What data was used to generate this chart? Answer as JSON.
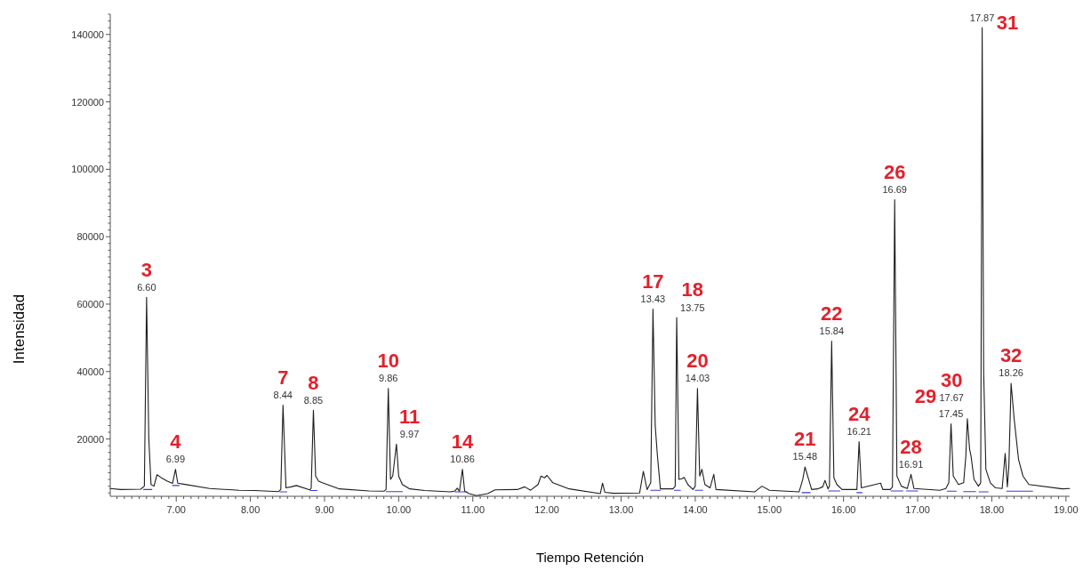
{
  "chart_data": {
    "type": "line",
    "xlabel": "Tiempo Retención",
    "ylabel": "Intensidad",
    "xlim": [
      6.11,
      19.05
    ],
    "ylim": [
      3000,
      146000
    ],
    "xticks": [
      {
        "value": 6.2,
        "label": null
      },
      {
        "value": 6.3,
        "label": null
      },
      {
        "value": 6.4,
        "label": null
      },
      {
        "value": 6.5,
        "label": null
      },
      {
        "value": 6.6,
        "label": null
      },
      {
        "value": 6.7,
        "label": null
      },
      {
        "value": 6.8,
        "label": null
      },
      {
        "value": 6.9,
        "label": null
      },
      {
        "value": 7,
        "label": "7.00"
      },
      {
        "value": 7.1,
        "label": null
      },
      {
        "value": 7.2,
        "label": null
      },
      {
        "value": 7.3,
        "label": null
      },
      {
        "value": 7.4,
        "label": null
      },
      {
        "value": 7.5,
        "label": null
      },
      {
        "value": 7.6,
        "label": null
      },
      {
        "value": 7.7,
        "label": null
      },
      {
        "value": 7.8,
        "label": null
      },
      {
        "value": 7.9,
        "label": null
      },
      {
        "value": 8,
        "label": "8.00"
      },
      {
        "value": 8.1,
        "label": null
      },
      {
        "value": 8.2,
        "label": null
      },
      {
        "value": 8.3,
        "label": null
      },
      {
        "value": 8.4,
        "label": null
      },
      {
        "value": 8.5,
        "label": null
      },
      {
        "value": 8.6,
        "label": null
      },
      {
        "value": 8.7,
        "label": null
      },
      {
        "value": 8.8,
        "label": null
      },
      {
        "value": 8.9,
        "label": null
      },
      {
        "value": 9,
        "label": "9.00"
      },
      {
        "value": 9.1,
        "label": null
      },
      {
        "value": 9.2,
        "label": null
      },
      {
        "value": 9.3,
        "label": null
      },
      {
        "value": 9.4,
        "label": null
      },
      {
        "value": 9.5,
        "label": null
      },
      {
        "value": 9.6,
        "label": null
      },
      {
        "value": 9.7,
        "label": null
      },
      {
        "value": 9.8,
        "label": null
      },
      {
        "value": 9.9,
        "label": null
      },
      {
        "value": 10,
        "label": "10.00"
      },
      {
        "value": 10.1,
        "label": null
      },
      {
        "value": 10.2,
        "label": null
      },
      {
        "value": 10.3,
        "label": null
      },
      {
        "value": 10.4,
        "label": null
      },
      {
        "value": 10.5,
        "label": null
      },
      {
        "value": 10.6,
        "label": null
      },
      {
        "value": 10.7,
        "label": null
      },
      {
        "value": 10.8,
        "label": null
      },
      {
        "value": 10.9,
        "label": null
      },
      {
        "value": 11,
        "label": "11.00"
      },
      {
        "value": 11.1,
        "label": null
      },
      {
        "value": 11.2,
        "label": null
      },
      {
        "value": 11.3,
        "label": null
      },
      {
        "value": 11.4,
        "label": null
      },
      {
        "value": 11.5,
        "label": null
      },
      {
        "value": 11.6,
        "label": null
      },
      {
        "value": 11.7,
        "label": null
      },
      {
        "value": 11.8,
        "label": null
      },
      {
        "value": 11.9,
        "label": null
      },
      {
        "value": 12,
        "label": "12.00"
      },
      {
        "value": 12.1,
        "label": null
      },
      {
        "value": 12.2,
        "label": null
      },
      {
        "value": 12.3,
        "label": null
      },
      {
        "value": 12.4,
        "label": null
      },
      {
        "value": 12.5,
        "label": null
      },
      {
        "value": 12.6,
        "label": null
      },
      {
        "value": 12.7,
        "label": null
      },
      {
        "value": 12.8,
        "label": null
      },
      {
        "value": 12.9,
        "label": null
      },
      {
        "value": 13,
        "label": "13.00"
      },
      {
        "value": 13.1,
        "label": null
      },
      {
        "value": 13.2,
        "label": null
      },
      {
        "value": 13.3,
        "label": null
      },
      {
        "value": 13.4,
        "label": null
      },
      {
        "value": 13.5,
        "label": null
      },
      {
        "value": 13.6,
        "label": null
      },
      {
        "value": 13.7,
        "label": null
      },
      {
        "value": 13.8,
        "label": null
      },
      {
        "value": 13.9,
        "label": null
      },
      {
        "value": 14,
        "label": "14.00"
      },
      {
        "value": 14.1,
        "label": null
      },
      {
        "value": 14.2,
        "label": null
      },
      {
        "value": 14.3,
        "label": null
      },
      {
        "value": 14.4,
        "label": null
      },
      {
        "value": 14.5,
        "label": null
      },
      {
        "value": 14.6,
        "label": null
      },
      {
        "value": 14.7,
        "label": null
      },
      {
        "value": 14.8,
        "label": null
      },
      {
        "value": 14.9,
        "label": null
      },
      {
        "value": 15,
        "label": "15.00"
      },
      {
        "value": 15.1,
        "label": null
      },
      {
        "value": 15.2,
        "label": null
      },
      {
        "value": 15.3,
        "label": null
      },
      {
        "value": 15.4,
        "label": null
      },
      {
        "value": 15.5,
        "label": null
      },
      {
        "value": 15.6,
        "label": null
      },
      {
        "value": 15.7,
        "label": null
      },
      {
        "value": 15.8,
        "label": null
      },
      {
        "value": 15.9,
        "label": null
      },
      {
        "value": 16,
        "label": "16.00"
      },
      {
        "value": 16.1,
        "label": null
      },
      {
        "value": 16.2,
        "label": null
      },
      {
        "value": 16.3,
        "label": null
      },
      {
        "value": 16.4,
        "label": null
      },
      {
        "value": 16.5,
        "label": null
      },
      {
        "value": 16.6,
        "label": null
      },
      {
        "value": 16.7,
        "label": null
      },
      {
        "value": 16.8,
        "label": null
      },
      {
        "value": 16.9,
        "label": null
      },
      {
        "value": 17,
        "label": "17.00"
      },
      {
        "value": 17.1,
        "label": null
      },
      {
        "value": 17.2,
        "label": null
      },
      {
        "value": 17.3,
        "label": null
      },
      {
        "value": 17.4,
        "label": null
      },
      {
        "value": 17.5,
        "label": null
      },
      {
        "value": 17.6,
        "label": null
      },
      {
        "value": 17.7,
        "label": null
      },
      {
        "value": 17.8,
        "label": null
      },
      {
        "value": 17.9,
        "label": null
      },
      {
        "value": 18,
        "label": "18.00"
      },
      {
        "value": 18.1,
        "label": null
      },
      {
        "value": 18.2,
        "label": null
      },
      {
        "value": 18.3,
        "label": null
      },
      {
        "value": 18.4,
        "label": null
      },
      {
        "value": 18.5,
        "label": null
      },
      {
        "value": 18.6,
        "label": null
      },
      {
        "value": 18.7,
        "label": null
      },
      {
        "value": 18.8,
        "label": null
      },
      {
        "value": 18.9,
        "label": null
      },
      {
        "value": 19,
        "label": "19.00"
      }
    ],
    "yticks": [
      {
        "value": 4000,
        "label": null
      },
      {
        "value": 6000,
        "label": null
      },
      {
        "value": 8000,
        "label": null
      },
      {
        "value": 10000,
        "label": null
      },
      {
        "value": 12000,
        "label": null
      },
      {
        "value": 14000,
        "label": null
      },
      {
        "value": 16000,
        "label": null
      },
      {
        "value": 18000,
        "label": null
      },
      20000,
      {
        "value": 22000,
        "label": null
      },
      {
        "value": 24000,
        "label": null
      },
      {
        "value": 26000,
        "label": null
      },
      {
        "value": 28000,
        "label": null
      },
      {
        "value": 30000,
        "label": null
      },
      {
        "value": 32000,
        "label": null
      },
      {
        "value": 34000,
        "label": null
      },
      {
        "value": 36000,
        "label": null
      },
      {
        "value": 38000,
        "label": null
      },
      40000,
      {
        "value": 42000,
        "label": null
      },
      {
        "value": 44000,
        "label": null
      },
      {
        "value": 46000,
        "label": null
      },
      {
        "value": 48000,
        "label": null
      },
      {
        "value": 50000,
        "label": null
      },
      {
        "value": 52000,
        "label": null
      },
      {
        "value": 54000,
        "label": null
      },
      {
        "value": 56000,
        "label": null
      },
      {
        "value": 58000,
        "label": null
      },
      60000,
      {
        "value": 62000,
        "label": null
      },
      {
        "value": 64000,
        "label": null
      },
      {
        "value": 66000,
        "label": null
      },
      {
        "value": 68000,
        "label": null
      },
      {
        "value": 70000,
        "label": null
      },
      {
        "value": 72000,
        "label": null
      },
      {
        "value": 74000,
        "label": null
      },
      {
        "value": 76000,
        "label": null
      },
      {
        "value": 78000,
        "label": null
      },
      80000,
      {
        "value": 82000,
        "label": null
      },
      {
        "value": 84000,
        "label": null
      },
      {
        "value": 86000,
        "label": null
      },
      {
        "value": 88000,
        "label": null
      },
      {
        "value": 90000,
        "label": null
      },
      {
        "value": 92000,
        "label": null
      },
      {
        "value": 94000,
        "label": null
      },
      {
        "value": 96000,
        "label": null
      },
      {
        "value": 98000,
        "label": null
      },
      100000,
      {
        "value": 102000,
        "label": null
      },
      {
        "value": 104000,
        "label": null
      },
      {
        "value": 106000,
        "label": null
      },
      {
        "value": 108000,
        "label": null
      },
      {
        "value": 110000,
        "label": null
      },
      {
        "value": 112000,
        "label": null
      },
      {
        "value": 114000,
        "label": null
      },
      {
        "value": 116000,
        "label": null
      },
      {
        "value": 118000,
        "label": null
      },
      120000,
      {
        "value": 122000,
        "label": null
      },
      {
        "value": 124000,
        "label": null
      },
      {
        "value": 126000,
        "label": null
      },
      {
        "value": 128000,
        "label": null
      },
      {
        "value": 130000,
        "label": null
      },
      {
        "value": 132000,
        "label": null
      },
      {
        "value": 134000,
        "label": null
      },
      {
        "value": 136000,
        "label": null
      },
      {
        "value": 138000,
        "label": null
      },
      140000,
      {
        "value": 142000,
        "label": null
      },
      {
        "value": 144000,
        "label": null
      },
      {
        "value": 146000,
        "label": null
      }
    ],
    "series": [
      {
        "color": "#1e1e1e",
        "x": [
          6.11,
          6.25,
          6.52,
          6.57,
          6.6,
          6.63,
          6.66,
          6.7,
          6.74,
          6.8,
          6.88,
          6.95,
          6.99,
          7.02,
          7.1,
          7.45,
          7.85,
          8.05,
          8.38,
          8.41,
          8.44,
          8.48,
          8.55,
          8.62,
          8.8,
          8.82,
          8.85,
          8.88,
          8.92,
          8.97,
          9.2,
          9.6,
          9.8,
          9.83,
          9.86,
          9.89,
          9.92,
          9.97,
          10.0,
          10.05,
          10.15,
          10.35,
          10.7,
          10.76,
          10.79,
          10.82,
          10.86,
          10.89,
          10.95,
          11.05,
          11.2,
          11.3,
          11.6,
          11.7,
          11.78,
          11.88,
          11.92,
          11.97,
          12.0,
          12.08,
          12.3,
          12.72,
          12.75,
          12.78,
          12.9,
          13.25,
          13.3,
          13.35,
          13.4,
          13.43,
          13.46,
          13.49,
          13.53,
          13.7,
          13.73,
          13.75,
          13.78,
          13.82,
          13.85,
          13.9,
          13.97,
          14.0,
          14.03,
          14.06,
          14.09,
          14.13,
          14.2,
          14.25,
          14.28,
          14.8,
          14.9,
          15.0,
          15.4,
          15.45,
          15.48,
          15.53,
          15.57,
          15.65,
          15.72,
          15.75,
          15.79,
          15.81,
          15.84,
          15.87,
          15.91,
          15.98,
          16.18,
          16.21,
          16.24,
          16.5,
          16.53,
          16.63,
          16.66,
          16.69,
          16.72,
          16.78,
          16.86,
          16.91,
          16.95,
          17.3,
          17.38,
          17.42,
          17.45,
          17.48,
          17.55,
          17.62,
          17.65,
          17.67,
          17.7,
          17.72,
          17.76,
          17.82,
          17.85,
          17.87,
          17.89,
          17.92,
          17.98,
          18.05,
          18.14,
          18.18,
          18.21,
          18.23,
          18.26,
          18.3,
          18.36,
          18.42,
          18.5,
          18.95,
          19.05
        ],
        "values": [
          5300,
          5000,
          5100,
          6000,
          62000,
          20000,
          6500,
          6000,
          9400,
          8500,
          7500,
          6800,
          11000,
          6900,
          6600,
          5300,
          4800,
          4700,
          4400,
          5000,
          30000,
          5500,
          5800,
          6200,
          4900,
          5400,
          28500,
          9000,
          7500,
          7000,
          5200,
          4600,
          4500,
          5000,
          35000,
          8000,
          9000,
          18500,
          9000,
          6500,
          5200,
          4700,
          4300,
          4600,
          5400,
          4500,
          11000,
          4500,
          3800,
          3200,
          3800,
          4900,
          5000,
          5800,
          4800,
          6500,
          9000,
          8500,
          9200,
          7000,
          5200,
          3800,
          6900,
          4200,
          3900,
          4000,
          10400,
          5000,
          7000,
          58500,
          24000,
          15000,
          5200,
          5200,
          6000,
          56000,
          8000,
          8200,
          8600,
          6500,
          5000,
          6000,
          35000,
          9000,
          11000,
          6500,
          5500,
          9500,
          5000,
          4300,
          6000,
          4800,
          4300,
          8000,
          11700,
          8000,
          5000,
          5200,
          5800,
          7700,
          5200,
          6000,
          49000,
          8500,
          6500,
          5000,
          5000,
          19200,
          5500,
          6900,
          5000,
          5000,
          5800,
          91000,
          9000,
          6000,
          5300,
          9500,
          5300,
          4800,
          5300,
          7000,
          24500,
          9000,
          6500,
          7000,
          15000,
          26000,
          17000,
          14900,
          8000,
          6000,
          7000,
          142000,
          40000,
          11000,
          7000,
          5500,
          5300,
          15700,
          5800,
          12000,
          36500,
          26300,
          14000,
          9000,
          6500,
          5200,
          5300
        ]
      },
      {
        "color": "#3b3bd6",
        "x": [
          6.56,
          6.67
        ],
        "values": [
          5000,
          5000
        ]
      },
      {
        "color": "#3b3bd6",
        "x": [
          6.95,
          7.04
        ],
        "values": [
          6200,
          6200
        ]
      },
      {
        "color": "#3b3bd6",
        "x": [
          8.4,
          8.49
        ],
        "values": [
          4300,
          4300
        ]
      },
      {
        "color": "#3b3bd6",
        "x": [
          8.81,
          8.9
        ],
        "values": [
          4700,
          4700
        ]
      },
      {
        "color": "#3b3bd6",
        "x": [
          9.83,
          10.05
        ],
        "values": [
          4400,
          4400
        ]
      },
      {
        "color": "#3b3bd6",
        "x": [
          10.76,
          10.92
        ],
        "values": [
          4300,
          4300
        ]
      },
      {
        "color": "#3b3bd6",
        "x": [
          13.4,
          13.53
        ],
        "values": [
          4800,
          4800
        ]
      },
      {
        "color": "#3b3bd6",
        "x": [
          13.72,
          13.8
        ],
        "values": [
          4800,
          4800
        ]
      },
      {
        "color": "#3b3bd6",
        "x": [
          14.0,
          14.1
        ],
        "values": [
          4800,
          4800
        ]
      },
      {
        "color": "#3b3bd6",
        "x": [
          15.44,
          15.55
        ],
        "values": [
          4100,
          4100
        ]
      },
      {
        "color": "#3b3bd6",
        "x": [
          15.8,
          15.95
        ],
        "values": [
          4600,
          4600
        ]
      },
      {
        "color": "#3b3bd6",
        "x": [
          16.18,
          16.25
        ],
        "values": [
          4100,
          4100
        ]
      },
      {
        "color": "#3b3bd6",
        "x": [
          16.64,
          16.8
        ],
        "values": [
          4600,
          4600
        ]
      },
      {
        "color": "#3b3bd6",
        "x": [
          16.85,
          17.0
        ],
        "values": [
          4600,
          4600
        ]
      },
      {
        "color": "#3b3bd6",
        "x": [
          17.4,
          17.52
        ],
        "values": [
          4500,
          4500
        ]
      },
      {
        "color": "#3b3bd6",
        "x": [
          17.62,
          17.78
        ],
        "values": [
          4400,
          4400
        ]
      },
      {
        "color": "#3b3bd6",
        "x": [
          17.83,
          17.95
        ],
        "values": [
          4300,
          4300
        ]
      },
      {
        "color": "#3b3bd6",
        "x": [
          18.2,
          18.55
        ],
        "values": [
          4500,
          4500
        ]
      }
    ],
    "annotations": [
      {
        "text": "6.60",
        "x": 6.6,
        "y": 62000
      },
      {
        "text": "3",
        "x": 6.6,
        "y": 62000
      },
      {
        "text": "6.99",
        "x": 6.99,
        "y": 11000
      },
      {
        "text": "4",
        "x": 6.99,
        "y": 11000
      },
      {
        "text": "8.44",
        "x": 8.44,
        "y": 30000
      },
      {
        "text": "7",
        "x": 8.44,
        "y": 30000
      },
      {
        "text": "8.85",
        "x": 8.85,
        "y": 28500
      },
      {
        "text": "8",
        "x": 8.85,
        "y": 28500
      },
      {
        "text": "9.86",
        "x": 9.86,
        "y": 35000
      },
      {
        "text": "10",
        "x": 9.86,
        "y": 35000
      },
      {
        "text": "9.97",
        "x": 9.97,
        "y": 18500
      },
      {
        "text": "11",
        "x": 9.97,
        "y": 18500
      },
      {
        "text": "10.86",
        "x": 10.86,
        "y": 11000
      },
      {
        "text": "14",
        "x": 10.86,
        "y": 11000
      },
      {
        "text": "13.43",
        "x": 13.43,
        "y": 58500
      },
      {
        "text": "17",
        "x": 13.43,
        "y": 58500
      },
      {
        "text": "13.75",
        "x": 13.75,
        "y": 56000
      },
      {
        "text": "18",
        "x": 13.75,
        "y": 56000
      },
      {
        "text": "14.03",
        "x": 14.03,
        "y": 35000
      },
      {
        "text": "20",
        "x": 14.03,
        "y": 35000
      },
      {
        "text": "15.48",
        "x": 15.48,
        "y": 11700
      },
      {
        "text": "21",
        "x": 15.48,
        "y": 11700
      },
      {
        "text": "15.84",
        "x": 15.84,
        "y": 49000
      },
      {
        "text": "22",
        "x": 15.84,
        "y": 49000
      },
      {
        "text": "16.21",
        "x": 16.21,
        "y": 19200
      },
      {
        "text": "24",
        "x": 16.21,
        "y": 19200
      },
      {
        "text": "16.69",
        "x": 16.69,
        "y": 91000
      },
      {
        "text": "26",
        "x": 16.69,
        "y": 91000
      },
      {
        "text": "16.91",
        "x": 16.91,
        "y": 9500
      },
      {
        "text": "28",
        "x": 16.91,
        "y": 9500
      },
      {
        "text": "17.45",
        "x": 17.45,
        "y": 24500
      },
      {
        "text": "29",
        "x": 17.45,
        "y": 24500
      },
      {
        "text": "17.67",
        "x": 17.67,
        "y": 26000
      },
      {
        "text": "30",
        "x": 17.67,
        "y": 26000
      },
      {
        "text": "17.87",
        "x": 17.87,
        "y": 142000
      },
      {
        "text": "31",
        "x": 17.87,
        "y": 142000
      },
      {
        "text": "18.26",
        "x": 18.26,
        "y": 36500
      },
      {
        "text": "32",
        "x": 18.26,
        "y": 36500
      }
    ]
  }
}
